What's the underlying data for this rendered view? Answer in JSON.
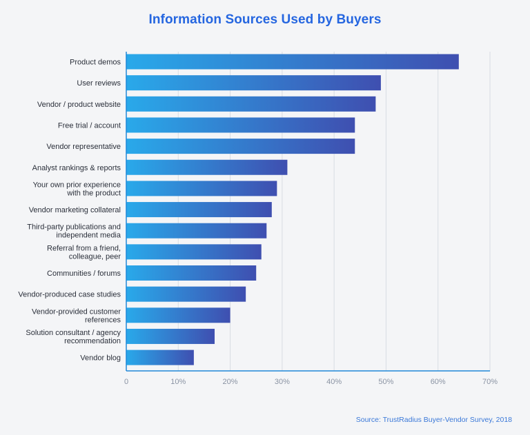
{
  "chart_data": {
    "type": "bar",
    "orientation": "horizontal",
    "title": "Information Sources Used by Buyers",
    "categories": [
      [
        "Product demos"
      ],
      [
        "User reviews"
      ],
      [
        "Vendor / product website"
      ],
      [
        "Free trial / account"
      ],
      [
        "Vendor representative"
      ],
      [
        "Analyst rankings & reports"
      ],
      [
        "Your own prior experience",
        "with the product"
      ],
      [
        "Vendor marketing collateral"
      ],
      [
        "Third-party publications and",
        "independent media"
      ],
      [
        "Referral from a friend,",
        "colleague, peer"
      ],
      [
        "Communities / forums"
      ],
      [
        "Vendor-produced case studies"
      ],
      [
        "Vendor-provided customer",
        "references"
      ],
      [
        "Solution consultant / agency",
        "recommendation"
      ],
      [
        "Vendor blog"
      ]
    ],
    "values": [
      0.64,
      0.49,
      0.48,
      0.44,
      0.44,
      0.31,
      0.29,
      0.28,
      0.27,
      0.26,
      0.25,
      0.23,
      0.2,
      0.17,
      0.13
    ],
    "xlim": [
      0,
      0.7
    ],
    "xticks": [
      0,
      0.1,
      0.2,
      0.3,
      0.4,
      0.5,
      0.6,
      0.7
    ],
    "xtick_labels": [
      "0",
      "10%",
      "20%",
      "30%",
      "40%",
      "50%",
      "60%",
      "70%"
    ],
    "xlabel": "",
    "ylabel": "",
    "grid": "vertical",
    "legend": "none",
    "colors": {
      "bar_start": "#29a9ea",
      "bar_end": "#3f4fb0",
      "axis": "#1e88d8",
      "grid": "#d8dce3",
      "title": "#2566e0"
    }
  },
  "source": "Source: TrustRadius Buyer-Vendor Survey, 2018"
}
